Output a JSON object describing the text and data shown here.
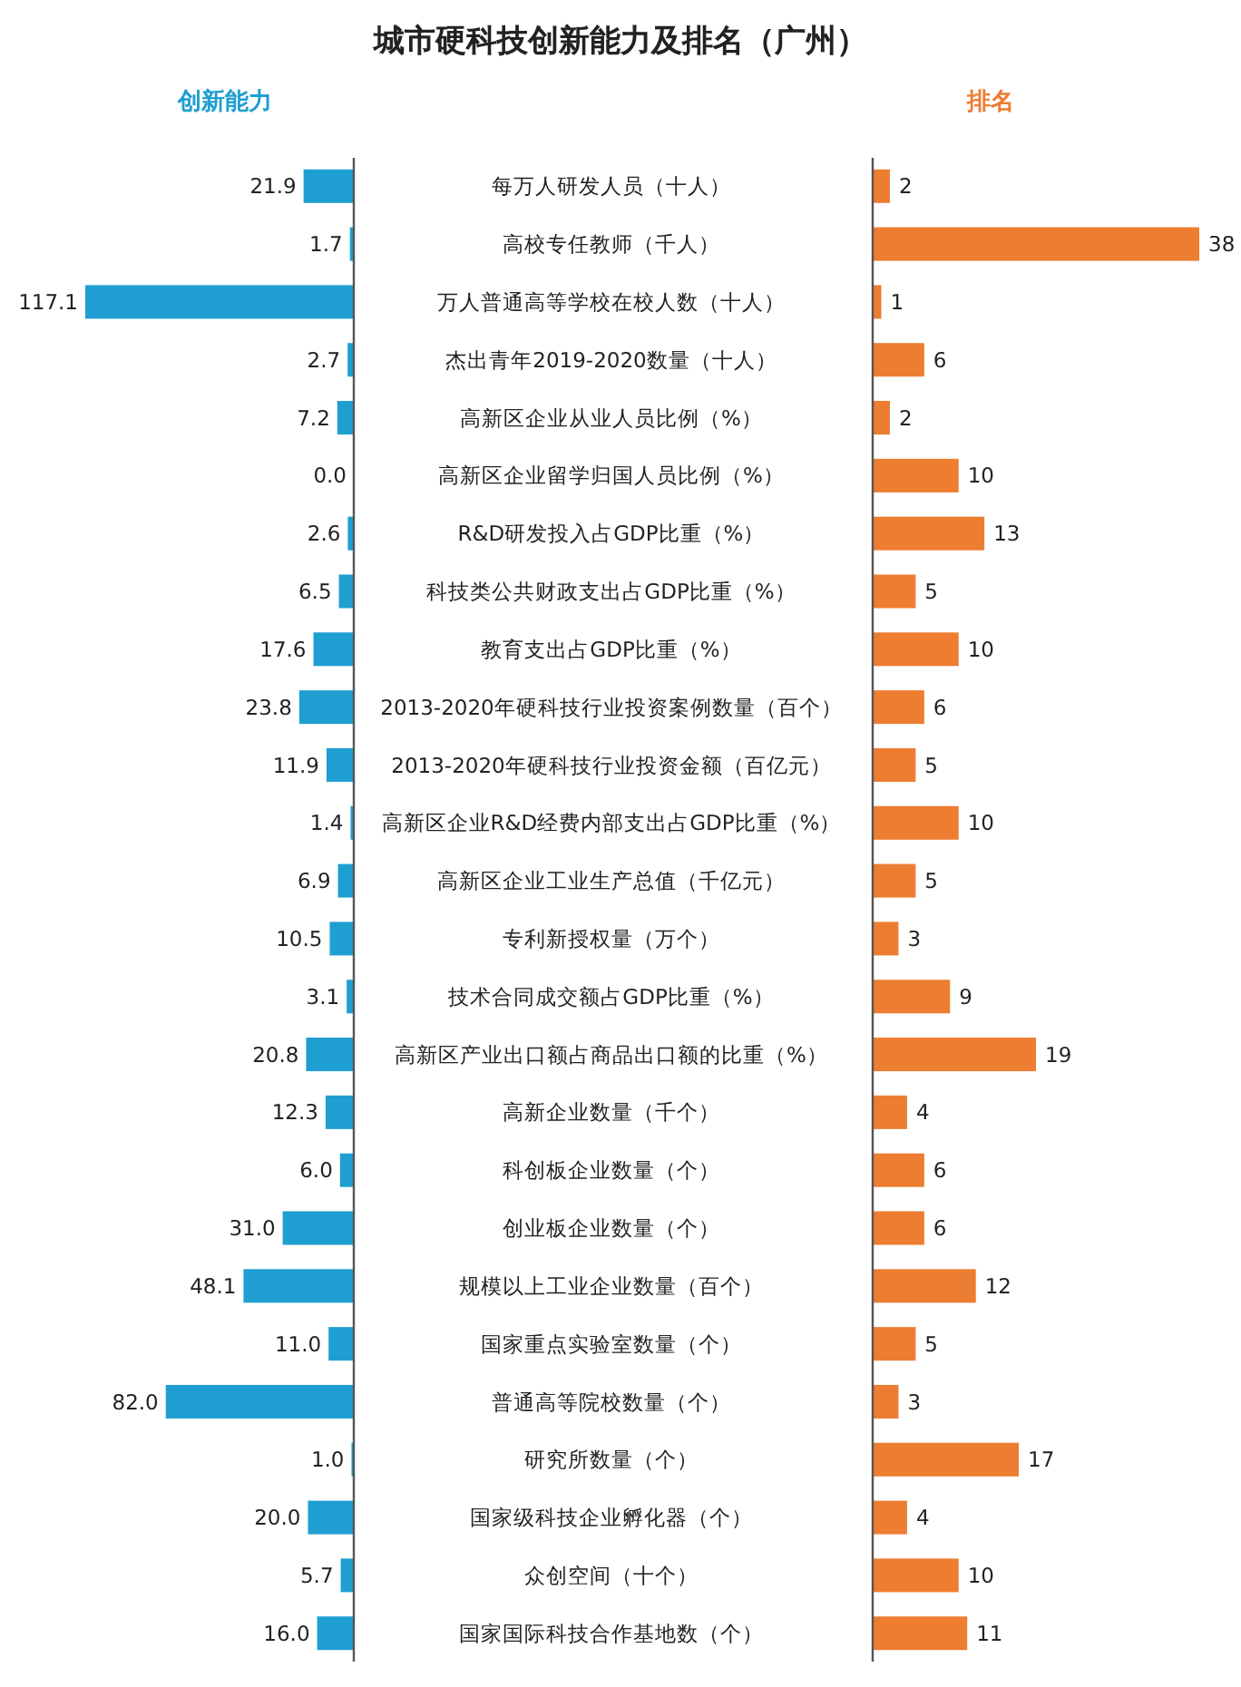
{
  "chart_data": [
    {
      "type": "bar",
      "orientation": "horizontal",
      "title": "城市硬科技创新能力及排名（广州）",
      "subtitle": "创新能力",
      "color": "#1f9fd1",
      "categories": [
        "每万人研发人员（十人）",
        "高校专任教师（千人）",
        "万人普通高等学校在校人数（十人）",
        "杰出青年2019-2020数量（十人）",
        "高新区企业从业人员比例（%）",
        "高新区企业留学归国人员比例（%）",
        "R&D研发投入占GDP比重（%）",
        "科技类公共财政支出占GDP比重（%）",
        "教育支出占GDP比重（%）",
        "2013-2020年硬科技行业投资案例数量（百个）",
        "2013-2020年硬科技行业投资金额（百亿元）",
        "高新区企业R&D经费内部支出占GDP比重（%）",
        "高新区企业工业生产总值（千亿元）",
        "专利新授权量（万个）",
        "技术合同成交额占GDP比重（%）",
        "高新区产业出口额占商品出口额的比重（%）",
        "高新企业数量（千个）",
        "科创板企业数量（个）",
        "创业板企业数量（个）",
        "规模以上工业企业数量（百个）",
        "国家重点实验室数量（个）",
        "普通高等院校数量（个）",
        "研究所数量（个）",
        "国家级科技企业孵化器（个）",
        "众创空间（十个）",
        "国家国际科技合作基地数（个）"
      ],
      "values": [
        21.9,
        1.7,
        117.1,
        2.7,
        7.2,
        0.0,
        2.6,
        6.5,
        17.6,
        23.8,
        11.9,
        1.4,
        6.9,
        10.5,
        3.1,
        20.8,
        12.3,
        6.0,
        31.0,
        48.1,
        11.0,
        82.0,
        1.0,
        20.0,
        5.7,
        16.0
      ],
      "value_labels": [
        "21.9",
        "1.7",
        "117.1",
        "2.7",
        "7.2",
        "0.0",
        "2.6",
        "6.5",
        "17.6",
        "23.8",
        "11.9",
        "1.4",
        "6.9",
        "10.5",
        "3.1",
        "20.8",
        "12.3",
        "6.0",
        "31.0",
        "48.1",
        "11.0",
        "82.0",
        "1.0",
        "20.0",
        "5.7",
        "16.0"
      ]
    },
    {
      "type": "bar",
      "orientation": "horizontal",
      "title": "排名",
      "color": "#ed7d31",
      "data_labels": true,
      "values": [
        2,
        38,
        1,
        6,
        2,
        10,
        13,
        5,
        10,
        6,
        5,
        10,
        5,
        3,
        9,
        19,
        4,
        6,
        6,
        12,
        5,
        3,
        17,
        4,
        10,
        11
      ]
    }
  ]
}
